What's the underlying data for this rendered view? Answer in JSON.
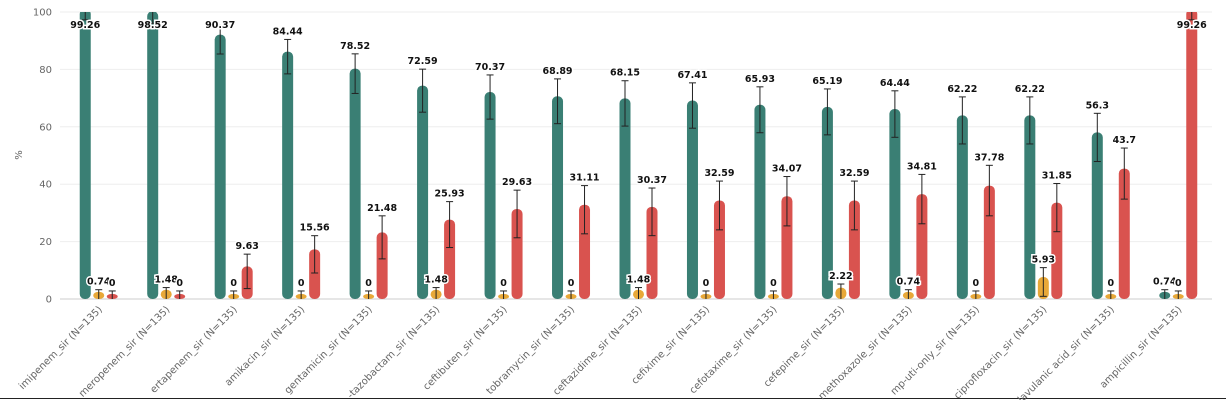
{
  "chart_data": {
    "type": "bar",
    "y_label": "%",
    "categories": [
      "imipenem_sir (N=135)",
      "meropenem_sir (N=135)",
      "ertapenem_sir (N=135)",
      "amikacin_sir (N=135)",
      "gentamicin_sir (N=135)",
      "-tazobactam_sir (N=135)",
      "ceftibuten_sir (N=135)",
      "tobramycin_sir (N=135)",
      "ceftazidime_sir (N=135)",
      "cefixime_sir (N=135)",
      "cefotaxime_sir (N=135)",
      "cefepime_sir (N=135)",
      "methoxazole_sir (N=135)",
      "mp-uti-only_sir (N=135)",
      "ciprofloxacin_sir (N=135)",
      "lavulanic acid_sir (N=135)",
      "ampicillin_sir (N=135)"
    ],
    "series": [
      {
        "color": "#3a7f74",
        "values": [
          99.26,
          98.52,
          90.37,
          84.44,
          78.52,
          72.59,
          70.37,
          68.89,
          68.15,
          67.41,
          65.93,
          65.19,
          64.44,
          62.22,
          62.22,
          56.3,
          0.74
        ],
        "errors": [
          2,
          2.5,
          5,
          6,
          6.9,
          7.5,
          7.7,
          7.8,
          7.9,
          7.9,
          8,
          8,
          8.1,
          8.2,
          8.2,
          8.4,
          2.5
        ]
      },
      {
        "color": "#e8a838",
        "values": [
          0.74,
          1.48,
          0,
          0,
          0,
          1.48,
          0,
          0,
          1.48,
          0,
          0,
          2.22,
          0.74,
          0,
          5.93,
          0,
          0
        ],
        "errors": [
          2.5,
          2.5,
          2.8,
          2.8,
          2.8,
          2.5,
          2.8,
          2.8,
          2.5,
          2.8,
          2.8,
          3,
          2.5,
          2.8,
          5,
          2.8,
          2.8
        ]
      },
      {
        "color": "#d9534f",
        "values": [
          0,
          0,
          9.63,
          15.56,
          21.48,
          25.93,
          29.63,
          31.11,
          30.37,
          32.59,
          34.07,
          32.59,
          34.81,
          37.78,
          31.85,
          43.7,
          99.26
        ],
        "errors": [
          2.8,
          2.8,
          6,
          6.5,
          7.5,
          8,
          8.3,
          8.4,
          8.3,
          8.5,
          8.6,
          8.5,
          8.6,
          8.8,
          8.4,
          8.9,
          2
        ]
      }
    ],
    "ylim": [
      0,
      100
    ],
    "yticks": [
      0,
      20,
      40,
      60,
      80,
      100
    ],
    "grid": true
  }
}
